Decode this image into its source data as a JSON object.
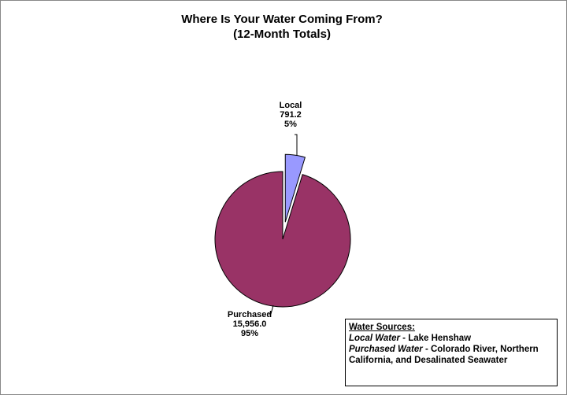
{
  "chart_data": {
    "type": "pie",
    "title": "Where Is Your Water Coming From?",
    "subtitle": "(12-Month Totals)",
    "categories": [
      "Local",
      "Purchased"
    ],
    "values": [
      791.2,
      15956.0
    ],
    "value_labels": [
      "791.2",
      "15,956.0"
    ],
    "percents": [
      5,
      95
    ],
    "percent_labels": [
      "5%",
      "95%"
    ],
    "colors": [
      "#9999ff",
      "#993366"
    ],
    "exploded": [
      true,
      false
    ],
    "note": {
      "title": "Water Sources:",
      "lines": [
        {
          "term": "Local Water",
          "text": " - Lake Henshaw"
        },
        {
          "term": "Purchased Water",
          "text": " - Colorado River, Northern California, and Desalinated Seawater"
        }
      ]
    }
  }
}
